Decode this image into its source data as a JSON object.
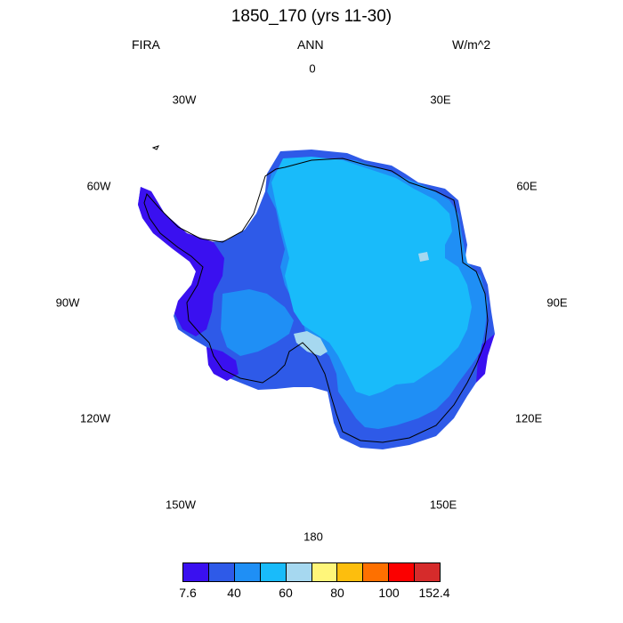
{
  "title": "1850_170 (yrs 11-30)",
  "left_label": "FIRA",
  "center_label": "ANN",
  "right_label": "W/m^2",
  "longitude_labels": {
    "lon_0": "0",
    "lon_30e": "30E",
    "lon_60e": "60E",
    "lon_90e": "90E",
    "lon_120e": "120E",
    "lon_150e": "150E",
    "lon_180": "180",
    "lon_150w": "150W",
    "lon_120w": "120W",
    "lon_90w": "90W",
    "lon_60w": "60W",
    "lon_30w": "30W"
  },
  "colorbar": {
    "colors": [
      "#3a10f0",
      "#2e5ae8",
      "#1f8ff5",
      "#19bbfa",
      "#a6d8f0",
      "#fff67a",
      "#fdbe0d",
      "#fe7000",
      "#fb0000",
      "#d62b2b"
    ],
    "labels": [
      "7.6",
      "40",
      "60",
      "80",
      "100",
      "152.4"
    ]
  }
}
